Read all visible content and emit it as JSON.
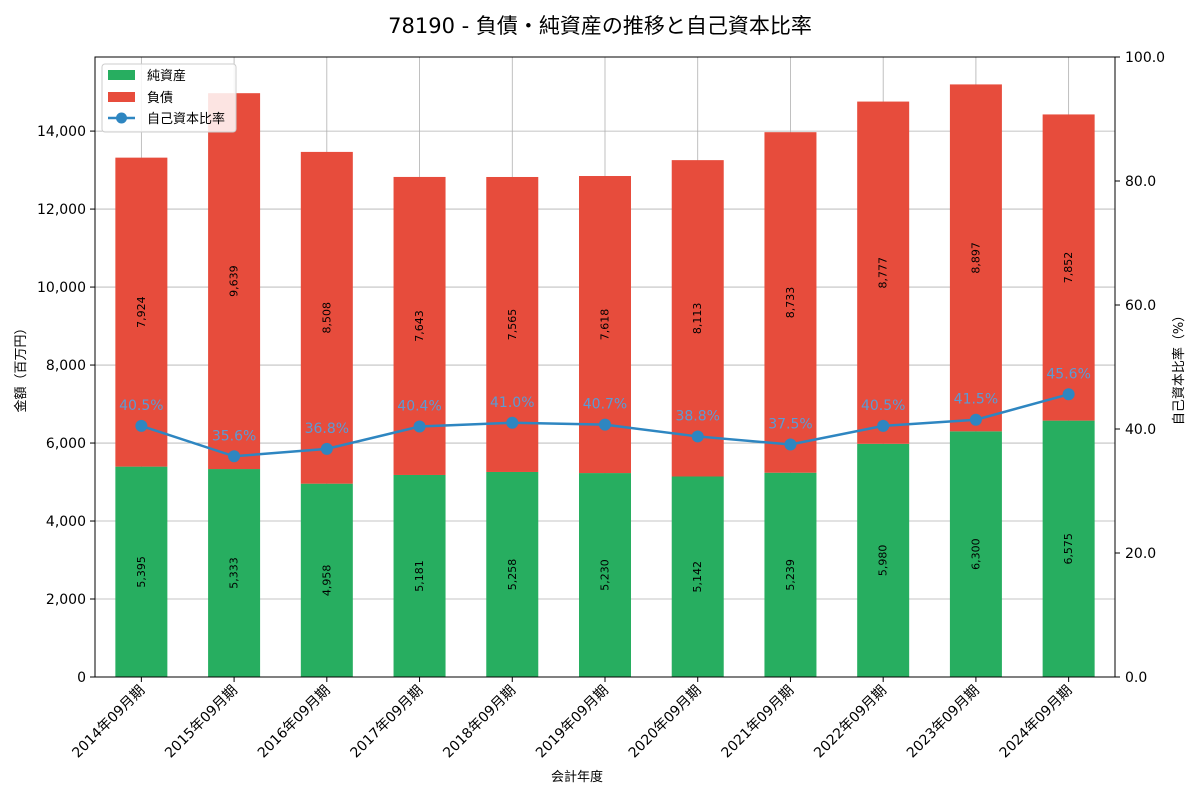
{
  "chart_data": {
    "type": "bar",
    "stacked": true,
    "title": "78190 - 負債・純資産の推移と自己資本比率",
    "xlabel": "会計年度",
    "ylabel": "金額（百万円）",
    "y2label": "自己資本比率（%）",
    "ylim": [
      0,
      15900
    ],
    "y2lim": [
      0,
      100
    ],
    "yticks": [
      0,
      2000,
      4000,
      6000,
      8000,
      10000,
      12000,
      14000
    ],
    "yticks_labels": [
      "0",
      "2,000",
      "4,000",
      "6,000",
      "8,000",
      "10,000",
      "12,000",
      "14,000"
    ],
    "y2ticks": [
      0,
      20,
      40,
      60,
      80,
      100
    ],
    "y2ticks_labels": [
      "0.0",
      "20.0",
      "40.0",
      "60.0",
      "80.0",
      "100.0"
    ],
    "grid": true,
    "legend_position": "top-left",
    "categories": [
      "2014年09月期",
      "2015年09月期",
      "2016年09月期",
      "2017年09月期",
      "2018年09月期",
      "2019年09月期",
      "2020年09月期",
      "2021年09月期",
      "2022年09月期",
      "2023年09月期",
      "2024年09月期"
    ],
    "series": [
      {
        "name": "純資産",
        "color": "#27ae60",
        "values": [
          5395,
          5333,
          4958,
          5181,
          5258,
          5230,
          5142,
          5239,
          5980,
          6300,
          6575
        ],
        "labels": [
          "5,395",
          "5,333",
          "4,958",
          "5,181",
          "5,258",
          "5,230",
          "5,142",
          "5,239",
          "5,980",
          "6,300",
          "6,575"
        ]
      },
      {
        "name": "負債",
        "color": "#e74c3c",
        "values": [
          7924,
          9639,
          8508,
          7643,
          7565,
          7618,
          8113,
          8733,
          8777,
          8897,
          7852
        ],
        "labels": [
          "7,924",
          "9,639",
          "8,508",
          "7,643",
          "7,565",
          "7,618",
          "8,113",
          "8,733",
          "8,777",
          "8,897",
          "7,852"
        ]
      }
    ],
    "line_series": {
      "name": "自己資本比率",
      "color": "#2e86c1",
      "axis": "right",
      "values": [
        40.5,
        35.6,
        36.8,
        40.4,
        41.0,
        40.7,
        38.8,
        37.5,
        40.5,
        41.5,
        45.6
      ],
      "labels": [
        "40.5%",
        "35.6%",
        "36.8%",
        "40.4%",
        "41.0%",
        "40.7%",
        "38.8%",
        "37.5%",
        "40.5%",
        "41.5%",
        "45.6%"
      ]
    }
  }
}
